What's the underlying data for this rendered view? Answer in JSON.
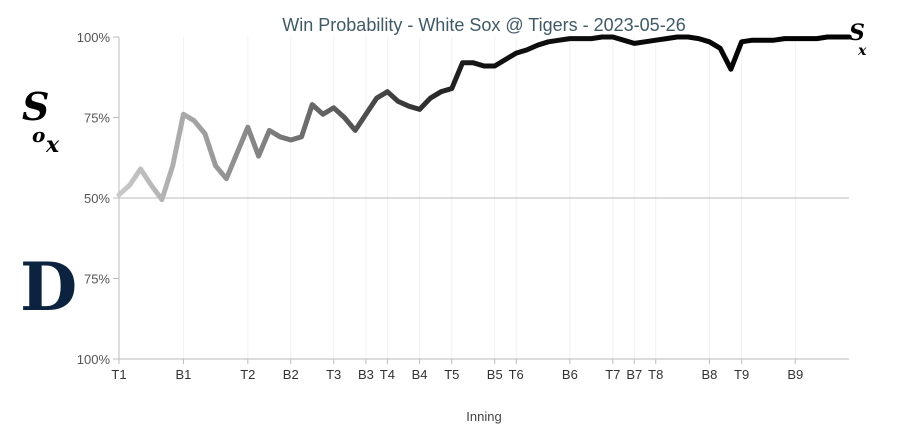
{
  "chart_data": {
    "type": "line",
    "title": "Win Probability - White Sox @ Tigers - 2023-05-26",
    "xlabel": "Inning",
    "y_tick_labels": [
      "100%",
      "75%",
      "50%",
      "75%",
      "100%"
    ],
    "x_tick_labels": [
      "T1",
      "B1",
      "T2",
      "B2",
      "T3",
      "B3",
      "T4",
      "B4",
      "T5",
      "B5",
      "T6",
      "B6",
      "T7",
      "B7",
      "T8",
      "B8",
      "T9",
      "B9"
    ],
    "x_tick_positions": [
      1,
      7,
      13,
      17,
      21,
      24,
      26,
      29,
      32,
      36,
      38,
      43,
      47,
      49,
      51,
      56,
      59,
      64
    ],
    "ylim": [
      -100,
      100
    ],
    "xlim": [
      1,
      69
    ],
    "grid": true,
    "series": [
      {
        "x": [
          1,
          2,
          3,
          4,
          5,
          6,
          7,
          8,
          9,
          10,
          11,
          12,
          13,
          14,
          15,
          16,
          17,
          18,
          19,
          20,
          21,
          22,
          23,
          24,
          25,
          26,
          27,
          28,
          29,
          30,
          31,
          32,
          33,
          34,
          35,
          36,
          37,
          38,
          39,
          40,
          41,
          42,
          43,
          44,
          45,
          46,
          47,
          48,
          49,
          50,
          51,
          52,
          53,
          54,
          55,
          56,
          57,
          58,
          59,
          60,
          61,
          62,
          63,
          64,
          65,
          66,
          67,
          68,
          69
        ],
        "y": [
          2,
          8,
          18,
          8,
          -1,
          20,
          52,
          48,
          40,
          20,
          12,
          28,
          44,
          26,
          42,
          38,
          36,
          38,
          58,
          52,
          56,
          50,
          42,
          52,
          62,
          66,
          60,
          57,
          55,
          62,
          66,
          68,
          84,
          84,
          82,
          82,
          86,
          90,
          92,
          95,
          97,
          98,
          99,
          99,
          99,
          100,
          100,
          98,
          96,
          97,
          98,
          99,
          100,
          100,
          99,
          97,
          93,
          80,
          97,
          98,
          98,
          98,
          99,
          99,
          99,
          99,
          100,
          100,
          100
        ]
      }
    ],
    "teams": {
      "top": "White Sox",
      "bottom": "Tigers"
    },
    "colors": {
      "line_start": "#c9c9c9",
      "line_end": "#000000",
      "axis": "#bbbbbb",
      "grid": "#f1f1f1",
      "title": "#3f5a66",
      "tigers_navy": "#0c2340"
    }
  }
}
